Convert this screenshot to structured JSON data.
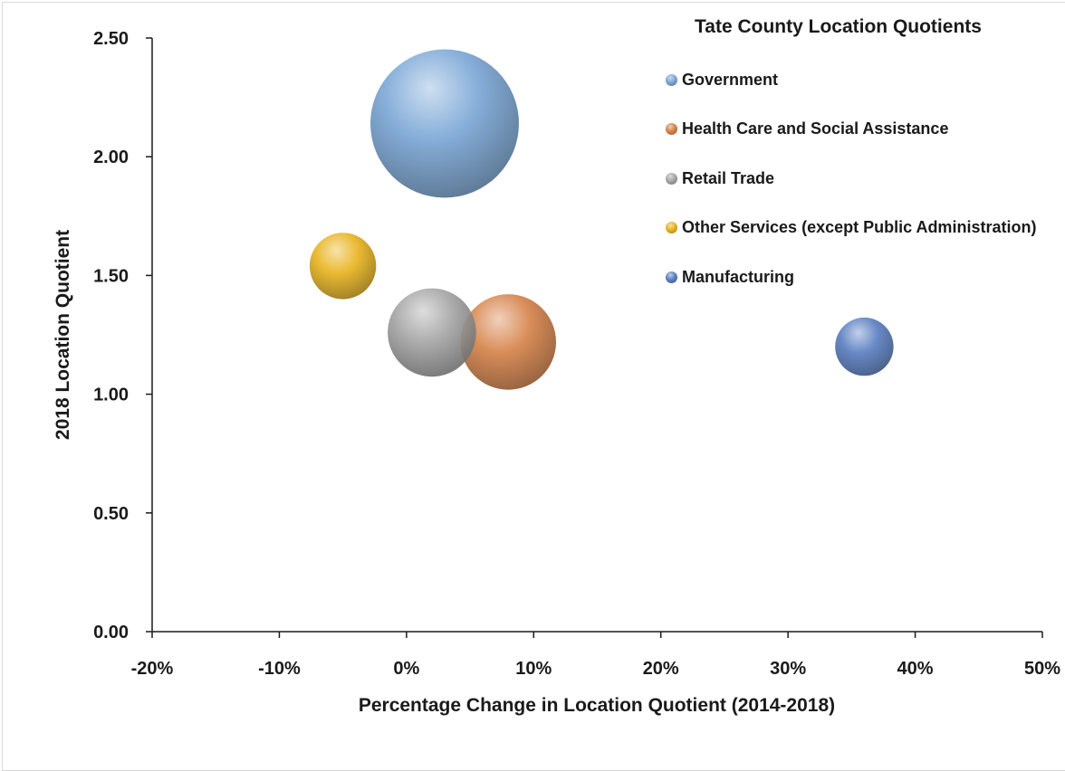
{
  "chart_data": {
    "type": "bubble",
    "title": "Tate County Location Quotients",
    "xlabel": "Percentage Change in Location Quotient (2014-2018)",
    "ylabel": "2018 Location Quotient",
    "xlim": [
      -0.2,
      0.5
    ],
    "ylim": [
      0.0,
      2.5
    ],
    "xticks": [
      "-20%",
      "-10%",
      "0%",
      "10%",
      "20%",
      "30%",
      "40%",
      "50%"
    ],
    "yticks": [
      "0.00",
      "0.50",
      "1.00",
      "1.50",
      "2.00",
      "2.50"
    ],
    "grid": false,
    "legend_position": "top-right",
    "series": [
      {
        "name": "Government",
        "x": 0.03,
        "y": 2.14,
        "size": 6.5,
        "color": "#7ba7d6"
      },
      {
        "name": "Health Care and Social Assistance",
        "x": 0.08,
        "y": 1.22,
        "size": 2.7,
        "color": "#d6834a"
      },
      {
        "name": "Retail Trade",
        "x": 0.02,
        "y": 1.26,
        "size": 2.3,
        "color": "#a6a6a6"
      },
      {
        "name": "Other Services (except Public Administration)",
        "x": -0.05,
        "y": 1.54,
        "size": 1.3,
        "color": "#e8b420"
      },
      {
        "name": "Manufacturing",
        "x": 0.36,
        "y": 1.2,
        "size": 1.0,
        "color": "#5b7fc2"
      }
    ]
  }
}
